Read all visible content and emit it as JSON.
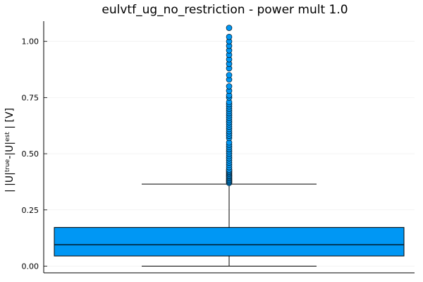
{
  "chart_data": {
    "type": "box",
    "title": "eulvtf_ug_no_restriction - power mult 1.0",
    "ylabel_parts": [
      "| |U|",
      "true",
      "-|U|",
      "est",
      " | [V]"
    ],
    "xlabel": "",
    "ylim": [
      -0.03,
      1.09
    ],
    "yticks": [
      0.0,
      0.25,
      0.5,
      0.75,
      1.0
    ],
    "ytick_labels": [
      "0.00",
      "0.25",
      "0.50",
      "0.75",
      "1.00"
    ],
    "grid": true,
    "legend": "none",
    "box": {
      "q1": 0.045,
      "median": 0.095,
      "q3": 0.172,
      "whisker_low": 0.0,
      "whisker_high": 0.365,
      "fill_color": "#0097f4",
      "outliers": [
        0.37,
        0.375,
        0.38,
        0.385,
        0.39,
        0.395,
        0.4,
        0.405,
        0.41,
        0.415,
        0.42,
        0.425,
        0.43,
        0.44,
        0.45,
        0.46,
        0.47,
        0.48,
        0.49,
        0.5,
        0.51,
        0.52,
        0.53,
        0.54,
        0.55,
        0.57,
        0.58,
        0.59,
        0.6,
        0.61,
        0.62,
        0.63,
        0.64,
        0.65,
        0.66,
        0.67,
        0.68,
        0.69,
        0.7,
        0.71,
        0.72,
        0.73,
        0.75,
        0.76,
        0.78,
        0.8,
        0.83,
        0.85,
        0.88,
        0.9,
        0.92,
        0.94,
        0.96,
        0.98,
        1.0,
        1.02,
        1.06
      ]
    }
  }
}
